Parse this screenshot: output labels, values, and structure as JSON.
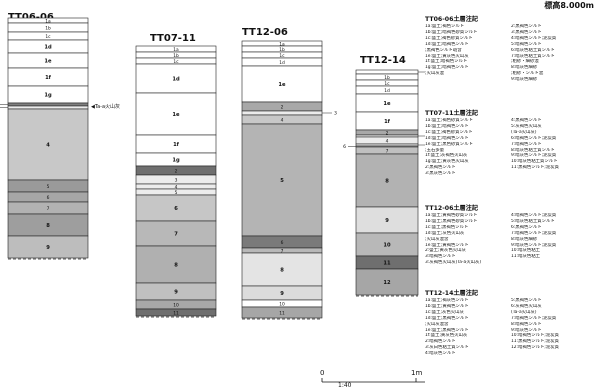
{
  "elevation_label": "標高8.000m",
  "scale": {
    "zero": "0",
    "ratio": "1:40",
    "end": "1m"
  },
  "volcanic_ash_label": "◀Ta-a火山灰",
  "columns": [
    {
      "title": "TT06-06",
      "layers": [
        {
          "label": "1a",
          "fill": "#ffffff"
        },
        {
          "label": "1b",
          "fill": "#ffffff"
        },
        {
          "label": "1c",
          "fill": "#ffffff"
        },
        {
          "label": "1d",
          "fill": "#ffffff"
        },
        {
          "label": "1e",
          "fill": "#ffffff"
        },
        {
          "label": "1f",
          "fill": "#ffffff"
        },
        {
          "label": "1g",
          "fill": "#ffffff"
        },
        {
          "label": "2",
          "fill": "#7f7f7f"
        },
        {
          "label": "3",
          "fill": "#ececec"
        },
        {
          "label": "4",
          "fill": "#c8c8c8"
        },
        {
          "label": "5",
          "fill": "#9a9a9a"
        },
        {
          "label": "6",
          "fill": "#a6a6a6"
        },
        {
          "label": "7",
          "fill": "#b2b2b2"
        },
        {
          "label": "8",
          "fill": "#9e9e9e"
        },
        {
          "label": "9",
          "fill": "#bdbdbd"
        }
      ]
    },
    {
      "title": "TT07-11",
      "layers": [
        {
          "label": "1a",
          "fill": "#ffffff"
        },
        {
          "label": "1b",
          "fill": "#ffffff"
        },
        {
          "label": "1c",
          "fill": "#ffffff"
        },
        {
          "label": "1d",
          "fill": "#ffffff"
        },
        {
          "label": "1e",
          "fill": "#ffffff"
        },
        {
          "label": "1f",
          "fill": "#ffffff"
        },
        {
          "label": "1g",
          "fill": "#ffffff"
        },
        {
          "label": "2",
          "fill": "#6f6f6f"
        },
        {
          "label": "3",
          "fill": "#ececec"
        },
        {
          "label": "4",
          "fill": "#ececec"
        },
        {
          "label": "5",
          "fill": "#ececec"
        },
        {
          "label": "6",
          "fill": "#c6c6c6"
        },
        {
          "label": "7",
          "fill": "#b8b8b8"
        },
        {
          "label": "8",
          "fill": "#b0b0b0"
        },
        {
          "label": "9",
          "fill": "#c0c0c0"
        },
        {
          "label": "10",
          "fill": "#a8a8a8"
        },
        {
          "label": "11",
          "fill": "#6f6f6f"
        }
      ]
    },
    {
      "title": "TT12-06",
      "layers": [
        {
          "label": "1a",
          "fill": "#ffffff"
        },
        {
          "label": "1b",
          "fill": "#ffffff"
        },
        {
          "label": "1c",
          "fill": "#ffffff"
        },
        {
          "label": "1d",
          "fill": "#ffffff"
        },
        {
          "label": "1e",
          "fill": "#ffffff"
        },
        {
          "label": "2",
          "fill": "#a8a8a8"
        },
        {
          "label": "3",
          "fill": "#ececec"
        },
        {
          "label": "4",
          "fill": "#c8c8c8"
        },
        {
          "label": "5",
          "fill": "#b4b4b4"
        },
        {
          "label": "6",
          "fill": "#7a7a7a"
        },
        {
          "label": "7",
          "fill": "#b8b8b8"
        },
        {
          "label": "8",
          "fill": "#e4e4e4"
        },
        {
          "label": "9",
          "fill": "#dcdcdc"
        },
        {
          "label": "10",
          "fill": "#ffffff"
        },
        {
          "label": "11",
          "fill": "#a6a6a6"
        }
      ]
    },
    {
      "title": "TT12-14",
      "layers": [
        {
          "label": "1a",
          "fill": "#ffffff"
        },
        {
          "label": "1b",
          "fill": "#ffffff"
        },
        {
          "label": "1c",
          "fill": "#ffffff"
        },
        {
          "label": "1d",
          "fill": "#ffffff"
        },
        {
          "label": "1e",
          "fill": "#ffffff"
        },
        {
          "label": "1f",
          "fill": "#ffffff"
        },
        {
          "label": "2",
          "fill": "#a8a8a8"
        },
        {
          "label": "3",
          "fill": "#ececec"
        },
        {
          "label": "4",
          "fill": "#ececec"
        },
        {
          "label": "5",
          "fill": "#ececec"
        },
        {
          "label": "6",
          "fill": "#ececec"
        },
        {
          "label": "7",
          "fill": "#c0c0c0"
        },
        {
          "label": "8",
          "fill": "#b2b2b2"
        },
        {
          "label": "9",
          "fill": "#dedede"
        },
        {
          "label": "10",
          "fill": "#b8b8b8"
        },
        {
          "label": "11",
          "fill": "#6f6f6f"
        },
        {
          "label": "12",
          "fill": "#a6a6a6"
        }
      ]
    }
  ],
  "notes": [
    {
      "title": "TT06-06土層注記",
      "items": [
        "1a:盛土;褐色シルト",
        "2:黒褐色シルト",
        "1b:盛土;暗褐色砂質シルト",
        "3:黒褐色シルト",
        "1c:盛土;褐色砂質シルト",
        "4:暗褐色シルト;泥炭質",
        "1d:盛土;暗褐色シルト",
        "5:暗褐色シルト",
        "  ;黒褐色シルト斑含",
        "6:暗灰色粘土質シルト",
        "1e:盛土;黄灰色火山灰",
        "7:暗灰色粘土質シルト",
        "1f:盛土;暗褐色シルト",
        "  ;粗砂・細砂混",
        "1g:盛土;暗褐色シルト",
        "8:暗灰色細砂",
        "  ;火山灰混",
        "  ;粗砂・シルト混",
        "",
        "9:暗灰色細砂"
      ]
    },
    {
      "title": "TT07-11土層注記",
      "items": [
        "1a:盛土;褐色砂質シルト",
        "4:黒褐色シルト",
        "1b:盛土;暗褐色シルト",
        "5:灰褐色火山灰",
        "1c:盛土;褐色砂質シルト",
        "  (Ta-a火山灰)",
        "1d:盛土;暗褐色シルト",
        "6:暗褐色シルト;泥炭質",
        "1e:盛土;黒色砂質シルト",
        "7:暗褐色シルト",
        "  ;玉石多量",
        "8:暗灰色粘土質シルト",
        "1f:盛土;灰褐色火山灰",
        "9:暗灰色シルト;泥炭質",
        "1g:盛土;黄灰色火山灰",
        "10:暗灰色粘土質シルト",
        "2:黒褐色シルト",
        "11:黒褐色シルト;泥炭質",
        "3:黒灰色シルト",
        ""
      ]
    },
    {
      "title": "TT12-06土層注記",
      "items": [
        "1a:盛土;黄褐色砂質シルト",
        "4:暗褐色シルト;泥炭質",
        "1b:盛土;黒褐色砂質シルト",
        "5:暗灰色粘土質シルト",
        "1c:盛土;黒褐色シルト",
        "6:黒褐色シルト",
        "1d:盛土;灰色火山灰",
        "7:暗褐色シルト;泥炭質",
        "  ;火山灰混含",
        "8:暗灰色細砂",
        "1e:盛土;黄褐色シルト",
        "9:暗灰色シルト;泥炭質",
        "2:盛土;黄灰色火山灰",
        "10:暗灰色粘土",
        "3:暗褐色シルト",
        "11:暗灰色粘土",
        "3:灰褐色火山灰(Ta-a火山灰)",
        ""
      ]
    },
    {
      "title": "TT12-14土層注記",
      "items": [
        "1a:盛土;褐灰色シルト",
        "5:黒褐色シルト",
        "1b:盛土;黄褐色シルト",
        "6:灰褐色火山灰",
        "1c:盛土;灰色火山灰",
        "  (Ta-a火山灰)",
        "1d:盛土;黒褐色シルト",
        "7:暗褐色シルト;泥炭質",
        "  ;火山灰混含",
        "8:暗褐色シルト",
        "1e:盛土;黒褐色シルト",
        "9:暗灰色シルト",
        "1f:盛土;黄灰色火山灰",
        "10:暗褐色シルト;泥炭質",
        "2:暗褐色シルト",
        "11:黒褐色シルト;泥炭質",
        "3:灰白色粘土質シルト",
        "12:暗褐色シルト;泥炭質",
        "4:暗灰色シルト",
        ""
      ]
    }
  ]
}
